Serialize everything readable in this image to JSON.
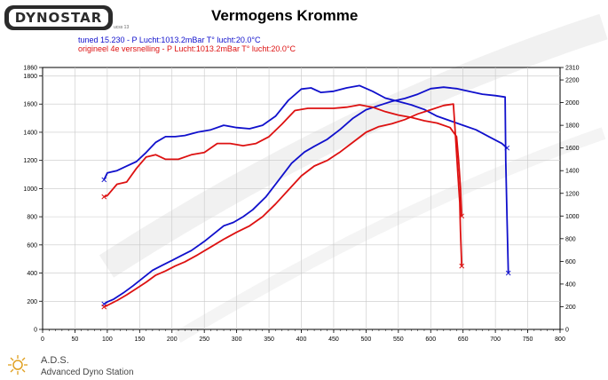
{
  "header": {
    "logo_text": "DYNOSTAR",
    "logo_sub": "ucss 13",
    "title": "Vermogens Kromme"
  },
  "legend": [
    {
      "label": "tuned 15.230  - P Lucht:1013.2mBar T° lucht:20.0°C",
      "color": "#1010cc"
    },
    {
      "label": "origineel 4e versnelling  - P Lucht:1013.2mBar T° lucht:20.0°C",
      "color": "#dd1111"
    }
  ],
  "footer": {
    "station_abbr": "A.D.S.",
    "station_name": "Advanced Dyno Station"
  },
  "chart_data": {
    "type": "line",
    "title": "Vermogens Kromme",
    "xlabel": "",
    "ylabel_left": "",
    "ylabel_right": "",
    "xlim": [
      0,
      800
    ],
    "ylim_left": [
      0,
      1860
    ],
    "ylim_right": [
      0,
      2310
    ],
    "x_ticks": [
      0,
      50,
      100,
      150,
      200,
      250,
      300,
      350,
      400,
      450,
      500,
      550,
      600,
      650,
      700,
      750,
      800
    ],
    "y_left_ticks": [
      0,
      200,
      400,
      600,
      800,
      1000,
      1200,
      1400,
      1600,
      1800,
      1860
    ],
    "y_right_ticks": [
      0,
      200,
      400,
      600,
      800,
      1000,
      1200,
      1400,
      1600,
      1800,
      2000,
      2200,
      2310
    ],
    "grid": true,
    "series": [
      {
        "name": "tuned 15.230",
        "role": "power",
        "axis": "left",
        "color": "#1010cc",
        "x": [
          95,
          100,
          110,
          125,
          140,
          155,
          170,
          185,
          200,
          215,
          230,
          250,
          265,
          280,
          295,
          310,
          325,
          345,
          365,
          385,
          405,
          420,
          440,
          460,
          480,
          500,
          520,
          540,
          560,
          580,
          600,
          620,
          640,
          660,
          680,
          700,
          715,
          716,
          718,
          720
        ],
        "y": [
          180,
          195,
          215,
          260,
          310,
          365,
          420,
          455,
          490,
          525,
          560,
          625,
          680,
          735,
          760,
          800,
          850,
          940,
          1060,
          1180,
          1260,
          1300,
          1350,
          1420,
          1500,
          1560,
          1590,
          1620,
          1640,
          1670,
          1710,
          1720,
          1710,
          1690,
          1670,
          1660,
          1650,
          1200,
          800,
          400
        ]
      },
      {
        "name": "tuned 15.230",
        "role": "torque",
        "axis": "right",
        "color": "#1010cc",
        "x": [
          95,
          100,
          115,
          130,
          145,
          160,
          175,
          190,
          205,
          220,
          240,
          260,
          280,
          300,
          320,
          340,
          360,
          380,
          400,
          415,
          430,
          450,
          470,
          490,
          510,
          530,
          550,
          570,
          590,
          610,
          630,
          650,
          670,
          690,
          710,
          718
        ],
        "y": [
          1320,
          1380,
          1400,
          1440,
          1480,
          1560,
          1650,
          1700,
          1700,
          1710,
          1740,
          1760,
          1800,
          1780,
          1770,
          1800,
          1880,
          2020,
          2120,
          2130,
          2090,
          2100,
          2130,
          2150,
          2100,
          2040,
          2010,
          1980,
          1940,
          1880,
          1840,
          1800,
          1760,
          1700,
          1640,
          1600
        ]
      },
      {
        "name": "origineel 4e versnelling",
        "role": "power",
        "axis": "left",
        "color": "#dd1111",
        "x": [
          95,
          100,
          115,
          130,
          145,
          160,
          175,
          190,
          205,
          220,
          240,
          260,
          280,
          300,
          320,
          340,
          360,
          380,
          400,
          420,
          440,
          460,
          480,
          500,
          520,
          540,
          560,
          580,
          600,
          620,
          635,
          638,
          642,
          645,
          646,
          648
        ],
        "y": [
          160,
          170,
          205,
          245,
          290,
          335,
          385,
          415,
          450,
          480,
          530,
          585,
          640,
          690,
          735,
          800,
          890,
          990,
          1090,
          1160,
          1200,
          1260,
          1330,
          1400,
          1440,
          1460,
          1490,
          1530,
          1560,
          1590,
          1600,
          1400,
          1100,
          900,
          700,
          450
        ]
      },
      {
        "name": "origineel 4e versnelling",
        "role": "torque",
        "axis": "right",
        "color": "#dd1111",
        "x": [
          95,
          100,
          115,
          130,
          145,
          160,
          175,
          190,
          210,
          230,
          250,
          270,
          290,
          310,
          330,
          350,
          370,
          390,
          410,
          430,
          450,
          470,
          490,
          510,
          530,
          550,
          570,
          590,
          610,
          630,
          640,
          643,
          646,
          648
        ],
        "y": [
          1170,
          1180,
          1280,
          1300,
          1420,
          1520,
          1540,
          1500,
          1500,
          1540,
          1560,
          1640,
          1640,
          1620,
          1640,
          1700,
          1810,
          1930,
          1950,
          1950,
          1950,
          1960,
          1980,
          1960,
          1920,
          1890,
          1870,
          1840,
          1820,
          1780,
          1700,
          1500,
          1250,
          1000
        ]
      }
    ]
  }
}
